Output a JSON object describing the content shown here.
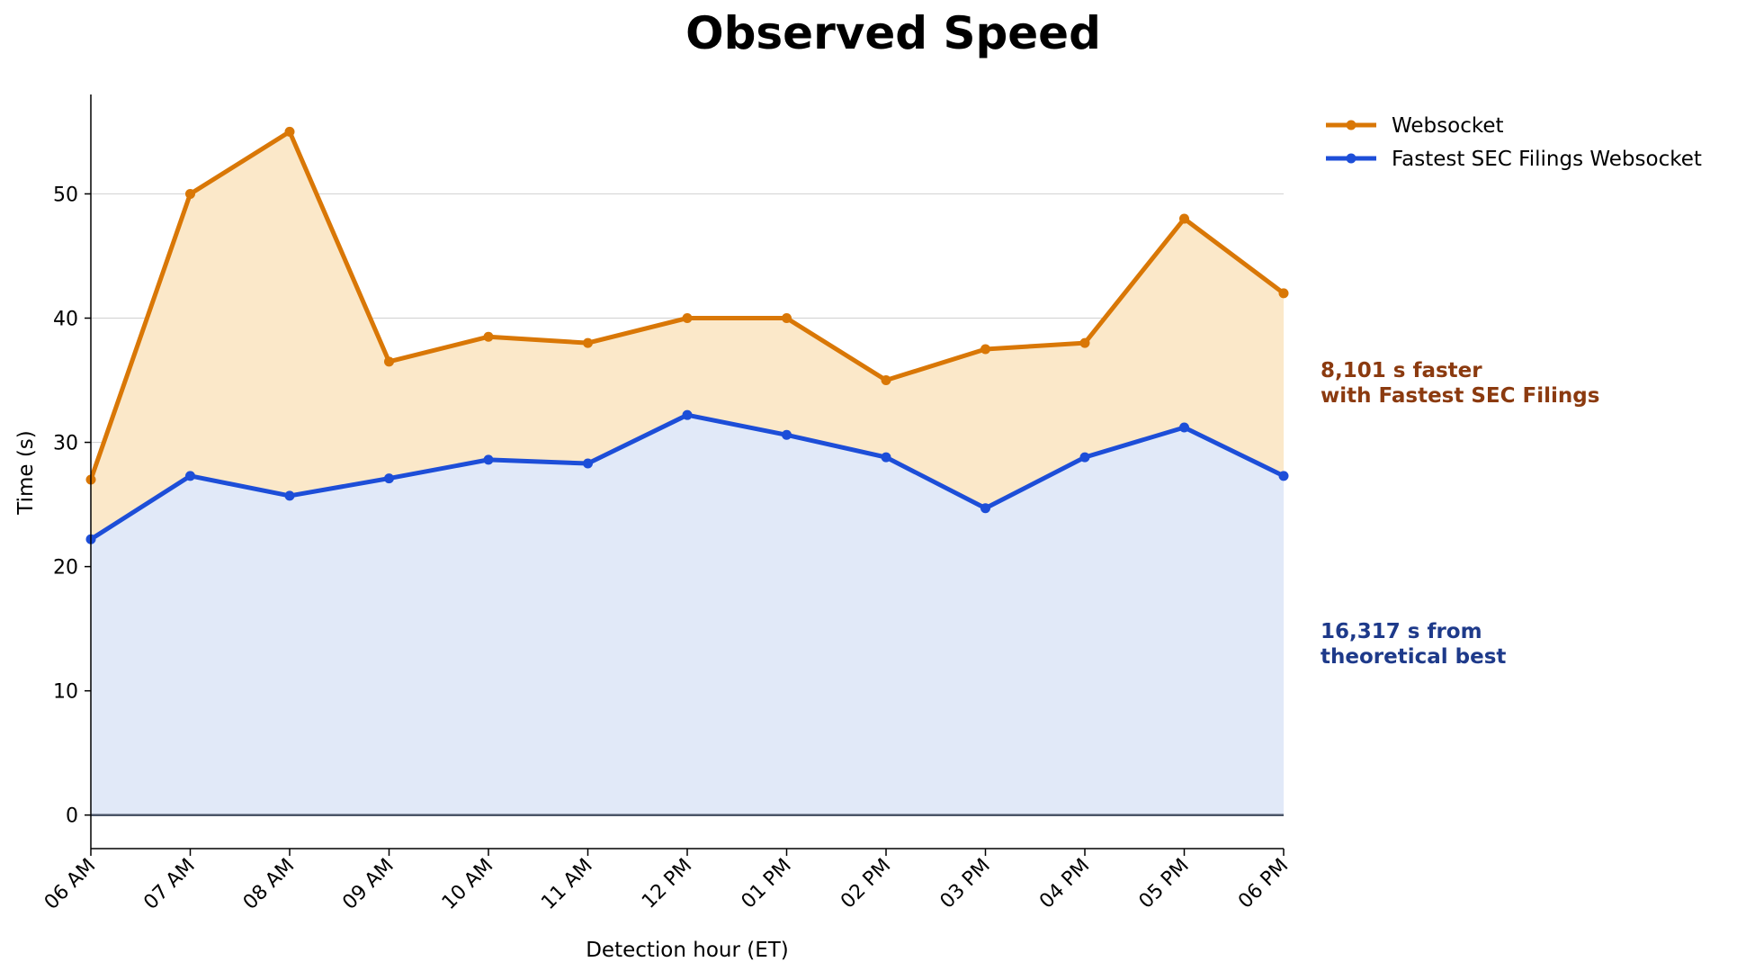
{
  "chart_data": {
    "type": "area",
    "title": "Observed Speed",
    "xlabel": "Detection hour (ET)",
    "ylabel": "Time (s)",
    "categories": [
      "06 AM",
      "07 AM",
      "08 AM",
      "09 AM",
      "10 AM",
      "11 AM",
      "12 PM",
      "01 PM",
      "02 PM",
      "03 PM",
      "04 PM",
      "05 PM",
      "06 PM"
    ],
    "ylim": [
      -2.7,
      58
    ],
    "yticks": [
      0,
      10,
      20,
      30,
      40,
      50
    ],
    "grid": "horizontal",
    "legend_position": "upper-right-outside",
    "series": [
      {
        "name": "Websocket",
        "color": "#d97706",
        "fill": "#fbe8c9",
        "values": [
          27.0,
          50.0,
          55.0,
          36.5,
          38.5,
          38.0,
          40.0,
          40.0,
          35.0,
          37.5,
          38.0,
          48.0,
          42.0
        ]
      },
      {
        "name": "Fastest SEC Filings Websocket",
        "color": "#1d4ed8",
        "fill": "#e1e9f8",
        "values": [
          22.2,
          27.3,
          25.7,
          27.1,
          28.6,
          28.3,
          32.2,
          30.6,
          28.8,
          24.7,
          28.8,
          31.2,
          27.3
        ]
      }
    ],
    "annotations": [
      {
        "line1": "8,101 s faster",
        "line2": "with Fastest SEC Filings",
        "color": "#8b3a0f"
      },
      {
        "line1": "16,317 s from",
        "line2": "theoretical best",
        "color": "#1e3a8a"
      }
    ]
  }
}
